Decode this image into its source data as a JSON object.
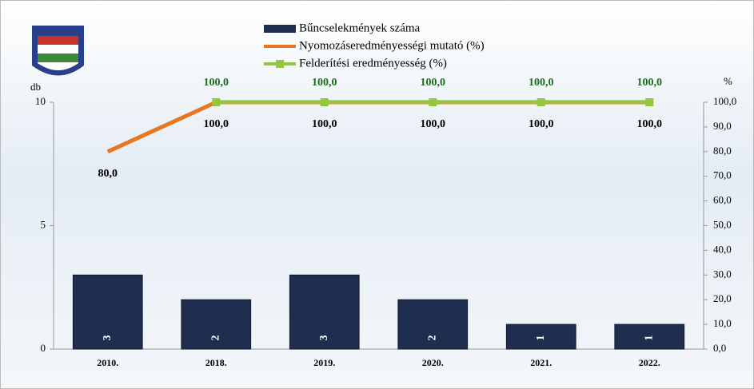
{
  "chart_data": {
    "type": "combo",
    "categories": [
      "2010.",
      "2018.",
      "2019.",
      "2020.",
      "2021.",
      "2022."
    ],
    "series": [
      {
        "name": "Bűncselekmények száma",
        "type": "bar",
        "color": "#1f2d4e",
        "values": [
          3,
          2,
          3,
          2,
          1,
          1
        ]
      },
      {
        "name": "Nyomozáseredményességi mutató (%)",
        "type": "line",
        "axis": "y2",
        "color": "#e87722",
        "values": [
          80,
          100,
          100,
          100,
          100,
          100
        ],
        "value_labels": [
          "80,0",
          "100,0",
          "100,0",
          "100,0",
          "100,0",
          "100,0"
        ]
      },
      {
        "name": "Felderítési eredményesség (%)",
        "type": "line",
        "axis": "y2",
        "color": "#92c83e",
        "values": [
          null,
          100,
          100,
          100,
          100,
          100
        ],
        "value_labels": [
          null,
          "100,0",
          "100,0",
          "100,0",
          "100,0",
          "100,0"
        ]
      }
    ],
    "ylabel": "db",
    "ylim": [
      0,
      10
    ],
    "yticks": [
      0,
      5,
      10
    ],
    "y2label": "%",
    "y2lim": [
      0,
      100
    ],
    "y2ticks": [
      {
        "value": 0,
        "label": "0,0"
      },
      {
        "value": 10,
        "label": "10,0"
      },
      {
        "value": 20,
        "label": "20,0"
      },
      {
        "value": 30,
        "label": "30,0"
      },
      {
        "value": 40,
        "label": "40,0"
      },
      {
        "value": 50,
        "label": "50,0"
      },
      {
        "value": 60,
        "label": "60,0"
      },
      {
        "value": 70,
        "label": "70,0"
      },
      {
        "value": 80,
        "label": "80,0"
      },
      {
        "value": 90,
        "label": "90,0"
      },
      {
        "value": 100,
        "label": "100,0"
      }
    ],
    "legend": "top"
  }
}
